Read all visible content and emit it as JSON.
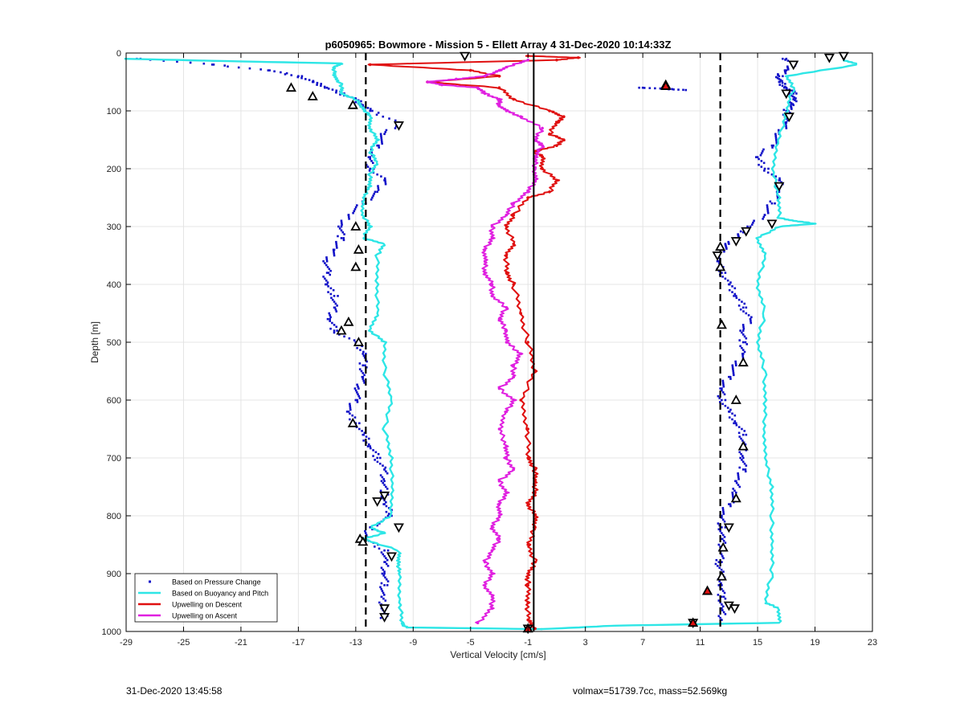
{
  "footer": {
    "timestamp": "31-Dec-2020 13:45:58",
    "info": "volmax=51739.7cc, mass=52.569kg"
  },
  "chart_data": {
    "type": "scatter",
    "title": "p6050965: Bowmore - Mission 5 - Ellett Array 4 31-Dec-2020 10:14:33Z",
    "xlabel": "Vertical Velocity [cm/s]",
    "ylabel": "Depth [m]",
    "xlim": [
      -29,
      23
    ],
    "ylim": [
      0,
      1000
    ],
    "y_reversed": true,
    "xticks": [
      -29,
      -25,
      -21,
      -17,
      -13,
      -9,
      -5,
      -1,
      3,
      7,
      11,
      15,
      19,
      23
    ],
    "yticks": [
      0,
      100,
      200,
      300,
      400,
      500,
      600,
      700,
      800,
      900,
      1000
    ],
    "grid": true,
    "legend_position": "bottom-left",
    "colors": {
      "pressure": "#1010c8",
      "buoyancy": "#2ee6e6",
      "descent": "#e01010",
      "ascent": "#e020e0",
      "reference": "#000000"
    },
    "reference_lines": {
      "solid": [
        -0.6
      ],
      "dashed": [
        -12.3,
        12.4
      ]
    },
    "series": [
      {
        "name": "Based on Pressure Change",
        "style": "points",
        "color_key": "pressure",
        "profiles": [
          {
            "depth": [
              10,
              20,
              30,
              40,
              50,
              60,
              70,
              80,
              90,
              100,
              120,
              140,
              160,
              180,
              200,
              220,
              240,
              260,
              280,
              300,
              320,
              340,
              360,
              380,
              400,
              420,
              440,
              460,
              480,
              500,
              520,
              540,
              560,
              580,
              600,
              620,
              640,
              660,
              680,
              700,
              720,
              740,
              760,
              780,
              800,
              820,
              840,
              860,
              880,
              900,
              920,
              940,
              960,
              980
            ],
            "x": [
              -28,
              -23,
              -19,
              -17,
              -16,
              -15,
              -14,
              -13,
              -12.5,
              -12,
              -10,
              -11,
              -11.5,
              -12,
              -12,
              -11,
              -11.5,
              -12.5,
              -13.5,
              -14,
              -14,
              -14.5,
              -15,
              -15,
              -15,
              -14.5,
              -14.5,
              -14.8,
              -14.5,
              -13,
              -12.3,
              -12.5,
              -12.5,
              -12.8,
              -13,
              -13.5,
              -13,
              -12.5,
              -12,
              -11.5,
              -11,
              -11,
              -11,
              -11,
              -10.5,
              -12,
              -12.3,
              -11,
              -11,
              -11,
              -11,
              -11.2,
              -11,
              -11
            ]
          },
          {
            "depth": [
              10,
              20,
              30,
              40,
              50,
              60,
              70,
              80,
              90,
              100,
              120,
              140,
              160,
              180,
              200,
              220,
              240,
              260,
              280,
              300,
              310,
              320,
              330,
              340,
              360,
              380,
              400,
              420,
              440,
              460,
              480,
              500,
              520,
              540,
              560,
              580,
              600,
              620,
              640,
              660,
              680,
              700,
              720,
              740,
              760,
              780,
              800,
              820,
              840,
              860,
              880,
              900,
              920,
              940,
              960,
              980
            ],
            "x": [
              17,
              17.5,
              17,
              16.5,
              16.5,
              17,
              17.5,
              17.5,
              17.5,
              17,
              17,
              16.5,
              16,
              15,
              15.5,
              16.5,
              16.5,
              16,
              15.5,
              14.5,
              14,
              13.5,
              13,
              12.5,
              12.3,
              12.5,
              13,
              13.5,
              14,
              14.5,
              14,
              14,
              14,
              13.5,
              13,
              12.5,
              12.5,
              13,
              13.5,
              14,
              14,
              14,
              14,
              13.5,
              13.5,
              13,
              12.5,
              12.5,
              12.5,
              12.5,
              12.3,
              12.5,
              12.5,
              12.5,
              12.5,
              12.5
            ]
          },
          {
            "depth": [
              60,
              62,
              64
            ],
            "x": [
              7,
              8.6,
              10
            ]
          }
        ]
      },
      {
        "name": "Based on Buoyancy and Pitch",
        "style": "line",
        "color_key": "buoyancy",
        "profiles": [
          {
            "depth": [
              10,
              14,
              18,
              25,
              40,
              55,
              70,
              80,
              95,
              110,
              130,
              150,
              170,
              190,
              210,
              230,
              250,
              280,
              300,
              320,
              330,
              350,
              400,
              450,
              480,
              500,
              550,
              600,
              650,
              700,
              750,
              800,
              820,
              830,
              840,
              860,
              880,
              900,
              950,
              985,
              993,
              996
            ],
            "x": [
              -29,
              -22,
              -14,
              -14.5,
              -14.5,
              -14,
              -14,
              -13,
              -12.5,
              -12,
              -12,
              -11.5,
              -12,
              -11.5,
              -12,
              -12,
              -12.5,
              -12.5,
              -12,
              -12.5,
              -11,
              -11.5,
              -11.5,
              -11.5,
              -12,
              -11,
              -11,
              -10.5,
              -11,
              -10.5,
              -10.5,
              -10.5,
              -12,
              -11,
              -12.5,
              -10,
              -10,
              -10,
              -9.9,
              -9.8,
              -9.5,
              0
            ]
          },
          {
            "depth": [
              996,
              990,
              985,
              960,
              950,
              900,
              850,
              800,
              750,
              700,
              650,
              600,
              550,
              500,
              450,
              400,
              350,
              320,
              300,
              295,
              290,
              285,
              250,
              200,
              150,
              100,
              60,
              40,
              20,
              12
            ],
            "x": [
              0,
              5,
              16.5,
              16.5,
              15.5,
              16,
              16,
              16,
              16,
              15.5,
              15.5,
              15.5,
              15.5,
              15,
              15.5,
              15,
              15.5,
              15,
              16.5,
              19,
              17.5,
              16.5,
              16.5,
              16,
              16.5,
              17,
              17.5,
              17,
              22,
              21
            ]
          }
        ]
      },
      {
        "name": "Upwelling on Descent",
        "style": "line-markers",
        "color_key": "descent",
        "profiles": [
          {
            "depth": [
              5,
              8,
              12,
              20,
              30,
              40,
              50,
              60,
              80,
              100,
              110,
              120,
              140,
              150,
              160,
              170,
              180,
              200,
              220,
              240,
              250,
              280,
              300,
              330,
              350,
              380,
              400,
              450,
              500,
              550,
              600,
              650,
              700,
              720,
              740,
              760,
              780,
              800,
              820,
              850,
              880,
              900,
              920,
              950,
              980,
              995
            ],
            "x": [
              -1,
              2.5,
              1,
              -12,
              -5,
              -3,
              -8,
              -3,
              -2,
              0.5,
              1.5,
              1,
              0.5,
              1.5,
              1,
              -0.5,
              0,
              0,
              1,
              0.5,
              -1,
              -2,
              -2.5,
              -2,
              -2.5,
              -2.5,
              -2,
              -1.5,
              -1,
              -0.5,
              -1.5,
              -1,
              -1,
              -0.5,
              -0.5,
              -0.5,
              -1,
              -0.5,
              -0.5,
              -1,
              -0.5,
              -1,
              -1,
              -1,
              -1,
              -0.5
            ]
          }
        ]
      },
      {
        "name": "Upwelling on Ascent",
        "style": "line-markers",
        "color_key": "ascent",
        "profiles": [
          {
            "depth": [
              985,
              960,
              940,
              920,
              900,
              880,
              860,
              840,
              820,
              800,
              780,
              760,
              740,
              720,
              700,
              680,
              650,
              620,
              600,
              580,
              560,
              540,
              520,
              500,
              480,
              460,
              440,
              420,
              400,
              380,
              360,
              340,
              320,
              300,
              280,
              260,
              240,
              220,
              200,
              180,
              160,
              150,
              130,
              110,
              100,
              90,
              80,
              70,
              60,
              55,
              50,
              45,
              40,
              30,
              20,
              12
            ],
            "x": [
              -4.5,
              -3.5,
              -3.5,
              -4,
              -3.5,
              -4,
              -3.5,
              -3,
              -3.5,
              -3,
              -3,
              -2.5,
              -3,
              -2,
              -2.5,
              -2.5,
              -3,
              -2.5,
              -2,
              -3,
              -2,
              -2,
              -1.5,
              -2.5,
              -2.5,
              -3,
              -2.5,
              -3.5,
              -3.5,
              -4,
              -4,
              -4,
              -3.5,
              -3.5,
              -2.5,
              -2,
              -1,
              -0.5,
              -0.5,
              -0.5,
              0,
              -0.5,
              0,
              -1.5,
              -2.5,
              -3,
              -3,
              -4,
              -4.5,
              -7,
              -8,
              -6,
              -4,
              -3,
              -2,
              -1
            ]
          }
        ]
      }
    ],
    "markers": {
      "up_triangles": [
        [
          -17.5,
          60
        ],
        [
          -16,
          75
        ],
        [
          -13.2,
          90
        ],
        [
          -13,
          300
        ],
        [
          -12.8,
          340
        ],
        [
          -13,
          370
        ],
        [
          -13.5,
          465
        ],
        [
          -14,
          480
        ],
        [
          -12.8,
          500
        ],
        [
          -13.2,
          640
        ],
        [
          -12.7,
          840
        ],
        [
          -12.5,
          845
        ],
        [
          11.5,
          930
        ],
        [
          12.4,
          335
        ],
        [
          12.4,
          370
        ],
        [
          12.5,
          470
        ],
        [
          12.6,
          855
        ],
        [
          12.5,
          905
        ],
        [
          14,
          535
        ],
        [
          13.5,
          600
        ],
        [
          14,
          680
        ],
        [
          13.5,
          770
        ],
        [
          8.6,
          55
        ]
      ],
      "down_triangles": [
        [
          -10,
          820
        ],
        [
          -10.5,
          870
        ],
        [
          -11,
          960
        ],
        [
          -11,
          975
        ],
        [
          -10,
          125
        ],
        [
          -11,
          765
        ],
        [
          -11.5,
          775
        ],
        [
          13,
          820
        ],
        [
          13,
          955
        ],
        [
          17.5,
          20
        ],
        [
          17,
          70
        ],
        [
          17.2,
          110
        ],
        [
          16.5,
          230
        ],
        [
          16,
          295
        ],
        [
          14.2,
          308
        ],
        [
          13.5,
          325
        ],
        [
          12.2,
          350
        ],
        [
          13.4,
          960
        ],
        [
          20,
          8
        ],
        [
          21,
          5
        ],
        [
          10.5,
          985
        ],
        [
          -1,
          995
        ],
        [
          -5.4,
          5
        ]
      ],
      "red_markers": [
        [
          8.6,
          57
        ],
        [
          10.5,
          985
        ],
        [
          11.5,
          930
        ],
        [
          -1,
          995
        ]
      ]
    },
    "legend": [
      {
        "label": "Based on Pressure Change",
        "key": "pressure",
        "style": "point"
      },
      {
        "label": "Based on Buoyancy and Pitch",
        "key": "buoyancy",
        "style": "line"
      },
      {
        "label": "Upwelling on Descent",
        "key": "descent",
        "style": "line"
      },
      {
        "label": "Upwelling on Ascent",
        "key": "ascent",
        "style": "line"
      }
    ]
  }
}
